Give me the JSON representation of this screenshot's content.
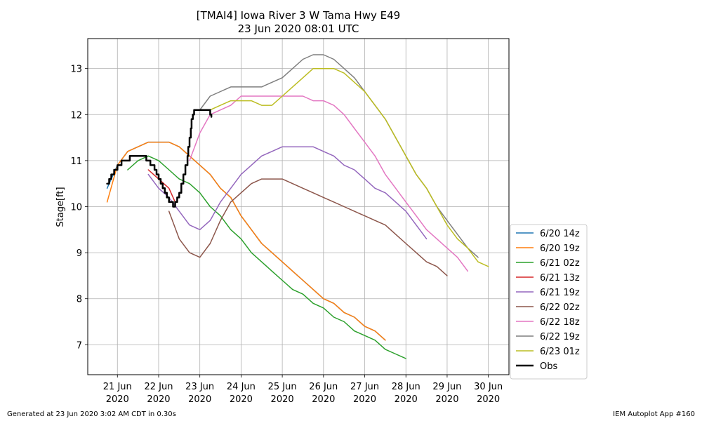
{
  "chart_data": {
    "type": "line",
    "title": "[TMAI4] Iowa River 3 W Tama Hwy E49",
    "subtitle": "23 Jun 2020 08:01 UTC",
    "xlabel": "",
    "ylabel": "Stage[ft]",
    "x_unit": "days since 2020-06-21 00:00 UTC",
    "xlim": [
      -0.72,
      9.5
    ],
    "ylim": [
      6.35,
      13.65
    ],
    "xticks": [
      {
        "x": 0,
        "line1": "21 Jun",
        "line2": "2020"
      },
      {
        "x": 1,
        "line1": "22 Jun",
        "line2": "2020"
      },
      {
        "x": 2,
        "line1": "23 Jun",
        "line2": "2020"
      },
      {
        "x": 3,
        "line1": "24 Jun",
        "line2": "2020"
      },
      {
        "x": 4,
        "line1": "25 Jun",
        "line2": "2020"
      },
      {
        "x": 5,
        "line1": "26 Jun",
        "line2": "2020"
      },
      {
        "x": 6,
        "line1": "27 Jun",
        "line2": "2020"
      },
      {
        "x": 7,
        "line1": "28 Jun",
        "line2": "2020"
      },
      {
        "x": 8,
        "line1": "29 Jun",
        "line2": "2020"
      },
      {
        "x": 9,
        "line1": "30 Jun",
        "line2": "2020"
      }
    ],
    "yticks": [
      7,
      8,
      9,
      10,
      11,
      12,
      13
    ],
    "grid": true,
    "legend_position": "right-bottom",
    "series": [
      {
        "name": "6/20 14z",
        "color": "#1f77b4",
        "width": 1.5,
        "step": false,
        "x": [
          -0.25,
          0.0,
          0.25,
          0.5,
          0.75,
          1.0,
          1.25,
          1.5,
          1.75,
          2.0,
          2.25,
          2.5,
          2.75,
          3.0,
          3.25,
          3.5,
          3.75,
          4.0,
          4.25,
          4.5,
          4.75,
          5.0,
          5.25,
          5.5,
          5.75,
          6.0,
          6.25,
          6.5
        ],
        "y": [
          10.4,
          10.9,
          11.2,
          11.3,
          11.4,
          11.4,
          11.4,
          11.3,
          11.1,
          10.9,
          10.7,
          10.4,
          10.2,
          9.8,
          9.5,
          9.2,
          9.0,
          8.8,
          8.6,
          8.4,
          8.2,
          8.0,
          7.9,
          7.7,
          7.6,
          7.4,
          7.3,
          7.1
        ]
      },
      {
        "name": "6/20 19z",
        "color": "#ff7f0e",
        "width": 1.5,
        "step": false,
        "x": [
          -0.25,
          0.0,
          0.25,
          0.5,
          0.75,
          1.0,
          1.25,
          1.5,
          1.75,
          2.0,
          2.25,
          2.5,
          2.75,
          3.0,
          3.25,
          3.5,
          3.75,
          4.0,
          4.25,
          4.5,
          4.75,
          5.0,
          5.25,
          5.5,
          5.75,
          6.0,
          6.25,
          6.5
        ],
        "y": [
          10.1,
          10.9,
          11.2,
          11.3,
          11.4,
          11.4,
          11.4,
          11.3,
          11.1,
          10.9,
          10.7,
          10.4,
          10.2,
          9.8,
          9.5,
          9.2,
          9.0,
          8.8,
          8.6,
          8.4,
          8.2,
          8.0,
          7.9,
          7.7,
          7.6,
          7.4,
          7.3,
          7.1
        ]
      },
      {
        "name": "6/21 02z",
        "color": "#2ca02c",
        "width": 1.5,
        "step": false,
        "x": [
          0.25,
          0.5,
          0.75,
          1.0,
          1.25,
          1.5,
          1.75,
          2.0,
          2.25,
          2.5,
          2.75,
          3.0,
          3.25,
          3.5,
          3.75,
          4.0,
          4.25,
          4.5,
          4.75,
          5.0,
          5.25,
          5.5,
          5.75,
          6.0,
          6.25,
          6.5,
          6.75,
          7.0
        ],
        "y": [
          10.8,
          11.0,
          11.1,
          11.0,
          10.8,
          10.6,
          10.5,
          10.3,
          10.0,
          9.8,
          9.5,
          9.3,
          9.0,
          8.8,
          8.6,
          8.4,
          8.2,
          8.1,
          7.9,
          7.8,
          7.6,
          7.5,
          7.3,
          7.2,
          7.1,
          6.9,
          6.8,
          6.7
        ]
      },
      {
        "name": "6/21 13z",
        "color": "#d62728",
        "width": 1.5,
        "step": false,
        "x": [
          0.75,
          1.0,
          1.25,
          1.4
        ],
        "y": [
          10.8,
          10.6,
          10.4,
          10.1
        ]
      },
      {
        "name": "6/21 19z",
        "color": "#9467bd",
        "width": 1.5,
        "step": false,
        "x": [
          0.75,
          1.0,
          1.25,
          1.5,
          1.75,
          2.0,
          2.25,
          2.5,
          2.75,
          3.0,
          3.25,
          3.5,
          3.75,
          4.0,
          4.25,
          4.5,
          4.75,
          5.0,
          5.25,
          5.5,
          5.75,
          6.0,
          6.25,
          6.5,
          6.75,
          7.0,
          7.25,
          7.5
        ],
        "y": [
          10.7,
          10.4,
          10.2,
          9.9,
          9.6,
          9.5,
          9.7,
          10.1,
          10.4,
          10.7,
          10.9,
          11.1,
          11.2,
          11.3,
          11.3,
          11.3,
          11.3,
          11.2,
          11.1,
          10.9,
          10.8,
          10.6,
          10.4,
          10.3,
          10.1,
          9.9,
          9.6,
          9.3
        ]
      },
      {
        "name": "6/22 02z",
        "color": "#8c564b",
        "width": 1.5,
        "step": false,
        "x": [
          1.25,
          1.5,
          1.75,
          2.0,
          2.25,
          2.5,
          2.75,
          3.0,
          3.25,
          3.5,
          3.75,
          4.0,
          4.25,
          4.5,
          4.75,
          5.0,
          5.25,
          5.5,
          5.75,
          6.0,
          6.25,
          6.5,
          6.75,
          7.0,
          7.25,
          7.5,
          7.75,
          8.0
        ],
        "y": [
          9.9,
          9.3,
          9.0,
          8.9,
          9.2,
          9.7,
          10.1,
          10.3,
          10.5,
          10.6,
          10.6,
          10.6,
          10.5,
          10.4,
          10.3,
          10.2,
          10.1,
          10.0,
          9.9,
          9.8,
          9.7,
          9.6,
          9.4,
          9.2,
          9.0,
          8.8,
          8.7,
          8.5
        ]
      },
      {
        "name": "6/22 18z",
        "color": "#e377c2",
        "width": 1.5,
        "step": false,
        "x": [
          1.75,
          2.0,
          2.25,
          2.5,
          2.75,
          3.0,
          3.25,
          3.5,
          3.75,
          4.0,
          4.25,
          4.5,
          4.75,
          5.0,
          5.25,
          5.5,
          5.75,
          6.0,
          6.25,
          6.5,
          6.75,
          7.0,
          7.25,
          7.5,
          7.75,
          8.0,
          8.25,
          8.5
        ],
        "y": [
          11.0,
          11.6,
          12.0,
          12.1,
          12.2,
          12.4,
          12.4,
          12.4,
          12.4,
          12.4,
          12.4,
          12.4,
          12.3,
          12.3,
          12.2,
          12.0,
          11.7,
          11.4,
          11.1,
          10.7,
          10.4,
          10.1,
          9.8,
          9.5,
          9.3,
          9.1,
          8.9,
          8.6
        ]
      },
      {
        "name": "6/22 19z",
        "color": "#7f7f7f",
        "width": 1.5,
        "step": false,
        "x": [
          2.0,
          2.25,
          2.5,
          2.75,
          3.0,
          3.25,
          3.5,
          3.75,
          4.0,
          4.25,
          4.5,
          4.75,
          5.0,
          5.25,
          5.5,
          5.75,
          6.0,
          6.25,
          6.5,
          6.75,
          7.0,
          7.25,
          7.5,
          7.75,
          8.0,
          8.25,
          8.5,
          8.75
        ],
        "y": [
          12.1,
          12.4,
          12.5,
          12.6,
          12.6,
          12.6,
          12.6,
          12.7,
          12.8,
          13.0,
          13.2,
          13.3,
          13.3,
          13.2,
          13.0,
          12.8,
          12.5,
          12.2,
          11.9,
          11.5,
          11.1,
          10.7,
          10.4,
          10.0,
          9.7,
          9.4,
          9.1,
          8.9
        ]
      },
      {
        "name": "6/23 01z",
        "color": "#bcbd22",
        "width": 1.5,
        "step": false,
        "x": [
          2.25,
          2.5,
          2.75,
          3.0,
          3.25,
          3.5,
          3.75,
          4.0,
          4.25,
          4.5,
          4.75,
          5.0,
          5.25,
          5.5,
          5.75,
          6.0,
          6.25,
          6.5,
          6.75,
          7.0,
          7.25,
          7.5,
          7.75,
          8.0,
          8.25,
          8.5,
          8.75,
          9.0
        ],
        "y": [
          12.1,
          12.2,
          12.3,
          12.3,
          12.3,
          12.2,
          12.2,
          12.4,
          12.6,
          12.8,
          13.0,
          13.0,
          13.0,
          12.9,
          12.7,
          12.5,
          12.2,
          11.9,
          11.5,
          11.1,
          10.7,
          10.4,
          10.0,
          9.6,
          9.3,
          9.1,
          8.8,
          8.7
        ]
      },
      {
        "name": "Obs",
        "color": "#000000",
        "width": 2.5,
        "step": true,
        "x": [
          -0.25,
          -0.2,
          -0.15,
          -0.08,
          0.0,
          0.1,
          0.25,
          0.3,
          0.4,
          0.6,
          0.7,
          0.8,
          0.9,
          0.95,
          1.0,
          1.05,
          1.1,
          1.15,
          1.2,
          1.25,
          1.3,
          1.35,
          1.4,
          1.45,
          1.5,
          1.55,
          1.6,
          1.65,
          1.7,
          1.72,
          1.75,
          1.78,
          1.8,
          1.83,
          1.86,
          1.9,
          2.0,
          2.1,
          2.2,
          2.25,
          2.28
        ],
        "y": [
          10.5,
          10.6,
          10.7,
          10.8,
          10.9,
          11.0,
          11.0,
          11.1,
          11.1,
          11.1,
          11.0,
          10.9,
          10.8,
          10.7,
          10.6,
          10.5,
          10.4,
          10.3,
          10.2,
          10.1,
          10.1,
          10.0,
          10.1,
          10.2,
          10.3,
          10.5,
          10.7,
          10.9,
          11.1,
          11.3,
          11.5,
          11.7,
          11.9,
          12.0,
          12.1,
          12.1,
          12.1,
          12.1,
          12.1,
          12.0,
          11.95
        ]
      }
    ]
  },
  "footer": {
    "left": "Generated at 23 Jun 2020 3:02 AM CDT in 0.30s",
    "right": "IEM Autoplot App #160"
  }
}
